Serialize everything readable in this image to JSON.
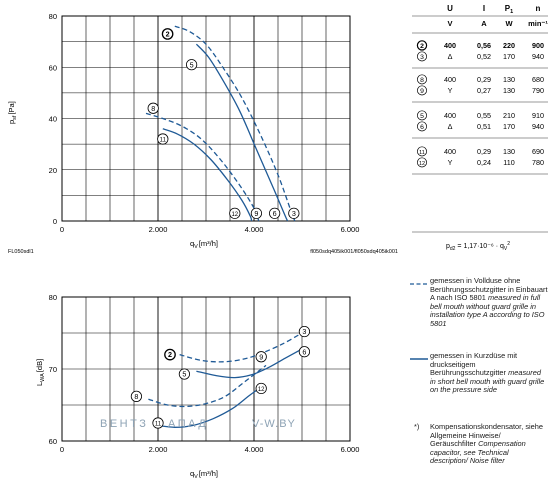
{
  "chart_data": [
    {
      "type": "line",
      "xlabel": "q",
      "xlabel_sub": "V",
      "xlabel_unit": "[m³/h]",
      "ylabel": "p",
      "ylabel_sub": "sf",
      "ylabel_unit": "[Pa]",
      "xlim": [
        0,
        6000
      ],
      "ylim": [
        0,
        80
      ],
      "xticks": [
        "0",
        "2.000",
        "4.000",
        "6.000"
      ],
      "yticks": [
        "0",
        "20",
        "40",
        "60",
        "80"
      ],
      "grid": true,
      "footer_left": "FL050sdl1",
      "footer_right": "fl050sdq405ik001/fl050sdq405ik001",
      "series": [
        {
          "name": "2",
          "style": "dashed",
          "points": [
            [
              2350,
              76
            ],
            [
              2650,
              74
            ],
            [
              3000,
              69
            ],
            [
              3350,
              60
            ],
            [
              3750,
              48
            ],
            [
              4150,
              33
            ],
            [
              4500,
              18
            ],
            [
              4750,
              5
            ],
            [
              4850,
              0
            ]
          ]
        },
        {
          "name": "5",
          "style": "solid",
          "points": [
            [
              2800,
              69
            ],
            [
              3050,
              64
            ],
            [
              3350,
              55
            ],
            [
              3700,
              43
            ],
            [
              4050,
              28
            ],
            [
              4400,
              13
            ],
            [
              4650,
              2
            ],
            [
              4700,
              0
            ]
          ]
        },
        {
          "name": "8",
          "style": "dashed",
          "points": [
            [
              1750,
              42
            ],
            [
              2100,
              40
            ],
            [
              2500,
              37
            ],
            [
              2900,
              32
            ],
            [
              3300,
              24
            ],
            [
              3700,
              14
            ],
            [
              4000,
              5
            ],
            [
              4100,
              0
            ]
          ]
        },
        {
          "name": "11",
          "style": "solid",
          "points": [
            [
              2100,
              36
            ],
            [
              2400,
              34
            ],
            [
              2750,
              30
            ],
            [
              3100,
              24
            ],
            [
              3450,
              16
            ],
            [
              3750,
              8
            ],
            [
              3920,
              2
            ],
            [
              3950,
              0
            ]
          ]
        }
      ],
      "markers": [
        {
          "label": "2",
          "x": 2200,
          "y": 73,
          "bold": true
        },
        {
          "label": "5",
          "x": 2700,
          "y": 61
        },
        {
          "label": "8",
          "x": 1900,
          "y": 44
        },
        {
          "label": "11",
          "x": 2100,
          "y": 32
        },
        {
          "label": "12",
          "x": 3600,
          "y": 3
        },
        {
          "label": "9",
          "x": 4050,
          "y": 3
        },
        {
          "label": "6",
          "x": 4430,
          "y": 3
        },
        {
          "label": "3",
          "x": 4830,
          "y": 3
        }
      ]
    },
    {
      "type": "line",
      "xlabel": "q",
      "xlabel_sub": "V",
      "xlabel_unit": "[m³/h]",
      "ylabel": "L",
      "ylabel_sub": "WA",
      "ylabel_unit": "[dB]",
      "xlim": [
        0,
        6000
      ],
      "ylim": [
        60,
        80
      ],
      "xticks": [
        "0",
        "2.000",
        "4.000",
        "6.000"
      ],
      "yticks": [
        "60",
        "70",
        "80"
      ],
      "grid": true,
      "series": [
        {
          "name": "2",
          "style": "dashed",
          "points": [
            [
              2450,
              72
            ],
            [
              2900,
              71.2
            ],
            [
              3350,
              71
            ],
            [
              3800,
              71.4
            ],
            [
              4200,
              72.3
            ],
            [
              4600,
              73.5
            ],
            [
              4950,
              74.8
            ]
          ]
        },
        {
          "name": "5",
          "style": "solid",
          "points": [
            [
              2800,
              69.7
            ],
            [
              3200,
              69.1
            ],
            [
              3600,
              68.8
            ],
            [
              3950,
              69.2
            ],
            [
              4300,
              70.2
            ],
            [
              4650,
              71.5
            ],
            [
              4950,
              72.6
            ]
          ]
        },
        {
          "name": "8",
          "style": "dashed",
          "points": [
            [
              1800,
              65.8
            ],
            [
              2200,
              65
            ],
            [
              2600,
              64.8
            ],
            [
              3000,
              65.2
            ],
            [
              3400,
              66.2
            ],
            [
              3800,
              68.2
            ],
            [
              4250,
              70.5
            ]
          ]
        },
        {
          "name": "11",
          "style": "solid",
          "points": [
            [
              1950,
              62.2
            ],
            [
              2350,
              61.9
            ],
            [
              2750,
              62.2
            ],
            [
              3150,
              63.1
            ],
            [
              3550,
              64.5
            ],
            [
              3900,
              66.3
            ],
            [
              4150,
              67.5
            ]
          ]
        }
      ],
      "markers": [
        {
          "label": "2",
          "x": 2250,
          "y": 72,
          "bold": true
        },
        {
          "label": "3",
          "x": 5050,
          "y": 75.2
        },
        {
          "label": "9",
          "x": 4150,
          "y": 71.7
        },
        {
          "label": "5",
          "x": 2550,
          "y": 69.3
        },
        {
          "label": "6",
          "x": 5050,
          "y": 72.4
        },
        {
          "label": "12",
          "x": 4150,
          "y": 67.3
        },
        {
          "label": "8",
          "x": 1550,
          "y": 66.2
        },
        {
          "label": "11",
          "x": 2000,
          "y": 62.5
        }
      ]
    }
  ],
  "table": {
    "headers": [
      "U",
      "I",
      "P1",
      "n"
    ],
    "units": [
      "V",
      "A",
      "W",
      "min⁻¹"
    ],
    "groups": [
      [
        {
          "id": "2",
          "bold": true,
          "U": "400",
          "I": "0,56",
          "P": "220",
          "n": "900"
        },
        {
          "id": "3",
          "bold": false,
          "U": "Δ",
          "I": "0,52",
          "P": "170",
          "n": "940"
        }
      ],
      [
        {
          "id": "8",
          "bold": false,
          "U": "400",
          "I": "0,29",
          "P": "130",
          "n": "680"
        },
        {
          "id": "9",
          "bold": false,
          "U": "Y",
          "I": "0,27",
          "P": "130",
          "n": "790"
        }
      ],
      [
        {
          "id": "5",
          "bold": false,
          "U": "400",
          "I": "0,55",
          "P": "210",
          "n": "910"
        },
        {
          "id": "6",
          "bold": false,
          "U": "Δ",
          "I": "0,51",
          "P": "170",
          "n": "940"
        }
      ],
      [
        {
          "id": "11",
          "bold": false,
          "U": "400",
          "I": "0,29",
          "P": "130",
          "n": "690"
        },
        {
          "id": "12",
          "bold": false,
          "U": "Y",
          "I": "0,24",
          "P": "110",
          "n": "780"
        }
      ]
    ],
    "formula": "p",
    "formula_sub": "d2",
    "formula_rhs": " = 1,17·10⁻⁶ · q",
    "formula_rhs_sub": "V",
    "formula_rhs_sup": "2"
  },
  "legend": {
    "dashed": {
      "text": "gemessen in Vollduse ohne Berührungsschutzgitter in Einbauart A nach ISO 5801",
      "italic": "measured in full bell mouth without guard grille in installation type A according to ISO 5801"
    },
    "solid": {
      "text": "gemessen in Kurzdüse mit druckseitigem Berührungsschutzgitter",
      "italic": "measured in short bell mouth with guard grille on the pressure side"
    },
    "note": {
      "mark": "*)",
      "text": "Kompensationskondensator, siehe Allgemeine Hinweise/ Geräuschfilter",
      "italic": "Compensation capacitor, see Technical description/ Noise filter"
    }
  },
  "watermark": {
    "left": "ВЕНТЗ",
    "mid": "АПАД",
    "right": "V-W.BY"
  },
  "colors": {
    "curve": "#1f5a96",
    "grid": "#000000",
    "text": "#1a1a1a",
    "watermark": "#8ea3b5"
  }
}
